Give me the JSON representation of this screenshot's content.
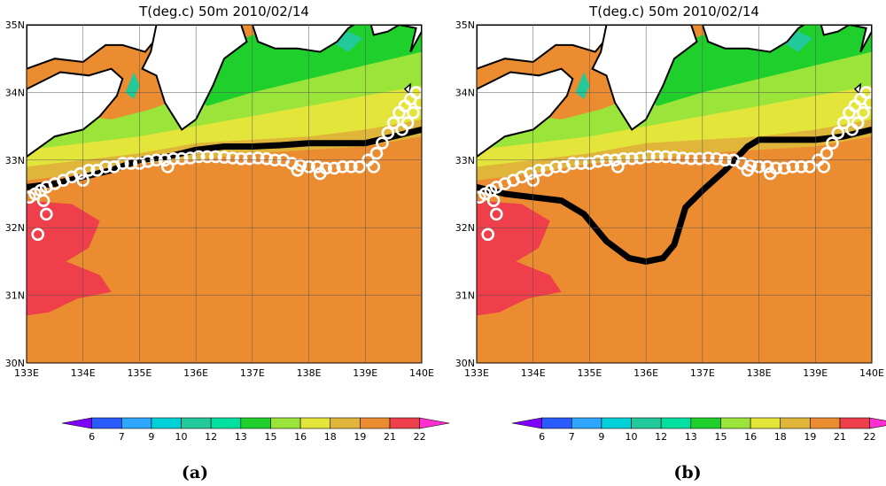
{
  "colors": {
    "purple": "#8000ff",
    "blue": "#2a5bff",
    "lightblue": "#2fa6ff",
    "cyan": "#00d0d8",
    "teal": "#22c99a",
    "green": "#1fd02c",
    "ltgreen": "#9be53b",
    "yellow": "#e3e53a",
    "gold": "#e0b63a",
    "orange": "#ec8c30",
    "red": "#ee3f4a",
    "magenta": "#ff2fd0",
    "land": "#ffffff",
    "route_black": "#000000",
    "obs_white": "#ffffff"
  },
  "colorbar": {
    "levels": [
      "6",
      "7",
      "9",
      "10",
      "12",
      "13",
      "15",
      "16",
      "18",
      "19",
      "21",
      "22"
    ],
    "segment_colors": [
      "#8000ff",
      "#2a5bff",
      "#2fa6ff",
      "#00d0d8",
      "#22c99a",
      "#00e0a0",
      "#1fd02c",
      "#9be53b",
      "#e3e53a",
      "#e0b63a",
      "#ec8c30",
      "#ee3f4a",
      "#ff2fd0"
    ]
  },
  "panels": [
    {
      "id": "a",
      "title": "T(deg.c)  50m  2010/02/14",
      "caption": "(a)",
      "lon_labels": [
        "133E",
        "134E",
        "135E",
        "136E",
        "137E",
        "138E",
        "139E",
        "140E"
      ],
      "lat_labels": [
        "30N",
        "31N",
        "32N",
        "33N",
        "34N",
        "35N"
      ],
      "path": [
        [
          133.0,
          32.6
        ],
        [
          133.5,
          32.65
        ],
        [
          134.0,
          32.75
        ],
        [
          134.5,
          32.85
        ],
        [
          135.0,
          33.0
        ],
        [
          135.5,
          33.05
        ],
        [
          136.0,
          33.15
        ],
        [
          136.5,
          33.2
        ],
        [
          137.0,
          33.2
        ],
        [
          137.5,
          33.22
        ],
        [
          138.0,
          33.25
        ],
        [
          138.5,
          33.25
        ],
        [
          139.0,
          33.25
        ],
        [
          139.5,
          33.35
        ],
        [
          140.0,
          33.45
        ]
      ]
    },
    {
      "id": "b",
      "title": "T(deg.c)  50m  2010/02/14",
      "caption": "(b)",
      "lon_labels": [
        "133E",
        "134E",
        "135E",
        "136E",
        "137E",
        "138E",
        "139E",
        "140E"
      ],
      "lat_labels": [
        "30N",
        "31N",
        "32N",
        "33N",
        "34N",
        "35N"
      ],
      "path": [
        [
          133.0,
          32.6
        ],
        [
          133.5,
          32.5
        ],
        [
          134.0,
          32.45
        ],
        [
          134.5,
          32.4
        ],
        [
          134.9,
          32.2
        ],
        [
          135.3,
          31.8
        ],
        [
          135.7,
          31.55
        ],
        [
          136.0,
          31.5
        ],
        [
          136.3,
          31.55
        ],
        [
          136.5,
          31.75
        ],
        [
          136.7,
          32.3
        ],
        [
          137.0,
          32.55
        ],
        [
          137.4,
          32.85
        ],
        [
          137.8,
          33.2
        ],
        [
          138.0,
          33.3
        ],
        [
          138.5,
          33.3
        ],
        [
          139.0,
          33.3
        ],
        [
          139.5,
          33.35
        ],
        [
          140.0,
          33.45
        ]
      ]
    }
  ],
  "observations": [
    [
      133.05,
      32.45
    ],
    [
      133.15,
      32.5
    ],
    [
      133.25,
      32.55
    ],
    [
      133.35,
      32.6
    ],
    [
      133.5,
      32.65
    ],
    [
      133.65,
      32.7
    ],
    [
      133.8,
      32.75
    ],
    [
      133.95,
      32.8
    ],
    [
      134.1,
      32.85
    ],
    [
      134.25,
      32.85
    ],
    [
      134.4,
      32.9
    ],
    [
      134.55,
      32.9
    ],
    [
      134.7,
      32.95
    ],
    [
      134.85,
      32.95
    ],
    [
      135.0,
      32.95
    ],
    [
      135.15,
      32.98
    ],
    [
      135.3,
      33.0
    ],
    [
      135.45,
      33.0
    ],
    [
      135.6,
      33.02
    ],
    [
      135.75,
      33.02
    ],
    [
      135.9,
      33.03
    ],
    [
      136.05,
      33.05
    ],
    [
      136.2,
      33.05
    ],
    [
      136.35,
      33.05
    ],
    [
      136.5,
      33.04
    ],
    [
      136.65,
      33.03
    ],
    [
      136.8,
      33.02
    ],
    [
      136.95,
      33.02
    ],
    [
      137.1,
      33.03
    ],
    [
      137.25,
      33.02
    ],
    [
      137.4,
      33.0
    ],
    [
      137.55,
      33.0
    ],
    [
      137.7,
      32.95
    ],
    [
      137.85,
      32.92
    ],
    [
      138.0,
      32.9
    ],
    [
      138.15,
      32.9
    ],
    [
      138.3,
      32.88
    ],
    [
      138.45,
      32.88
    ],
    [
      138.6,
      32.9
    ],
    [
      138.75,
      32.9
    ],
    [
      138.9,
      32.9
    ],
    [
      139.05,
      33.0
    ],
    [
      139.2,
      33.1
    ],
    [
      139.3,
      33.25
    ],
    [
      139.4,
      33.4
    ],
    [
      139.5,
      33.55
    ],
    [
      139.6,
      33.7
    ],
    [
      139.7,
      33.8
    ],
    [
      139.8,
      33.9
    ],
    [
      139.9,
      34.0
    ],
    [
      139.97,
      33.85
    ],
    [
      139.85,
      33.7
    ],
    [
      139.75,
      33.55
    ],
    [
      139.65,
      33.45
    ],
    [
      133.3,
      32.4
    ],
    [
      133.35,
      32.2
    ],
    [
      133.2,
      31.9
    ],
    [
      134.0,
      32.7
    ],
    [
      135.5,
      32.9
    ],
    [
      137.8,
      32.85
    ],
    [
      138.2,
      32.8
    ],
    [
      139.15,
      32.9
    ]
  ]
}
